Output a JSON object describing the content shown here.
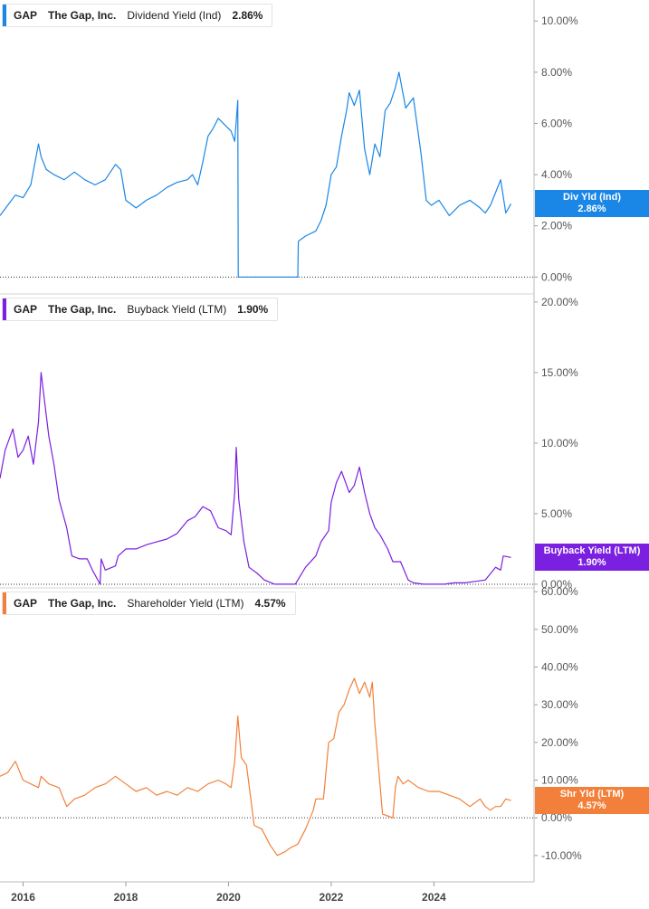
{
  "colors": {
    "dividend": "#1a86e6",
    "buyback": "#7b1fe0",
    "shareholder": "#f2803a"
  },
  "x_axis": {
    "labels": [
      "2016",
      "2018",
      "2020",
      "2022",
      "2024"
    ],
    "positions": [
      2016,
      2018,
      2020,
      2022,
      2024
    ],
    "range": [
      2015.55,
      2025.95
    ]
  },
  "panels": [
    {
      "ticker": "GAP",
      "company": "The Gap, Inc.",
      "metric": "Dividend Yield (Ind)",
      "value": "2.86%",
      "flag_label": "Div Yld (Ind)",
      "flag_value": "2.86%",
      "color_key": "dividend",
      "ylim": [
        -0.0066,
        0.1082
      ],
      "yticks": [
        0.0,
        0.02,
        0.04,
        0.06,
        0.08,
        0.1
      ],
      "ytick_labels": [
        "0.00%",
        "2.00%",
        "4.00%",
        "6.00%",
        "8.00%",
        "10.00%"
      ],
      "last_value": 0.0286
    },
    {
      "ticker": "GAP",
      "company": "The Gap, Inc.",
      "metric": "Buyback Yield (LTM)",
      "value": "1.90%",
      "flag_label": "Buyback Yield (LTM)",
      "flag_value": "1.90%",
      "color_key": "buyback",
      "ylim": [
        -0.0026,
        0.2057
      ],
      "yticks": [
        0.0,
        0.05,
        0.1,
        0.15,
        0.2
      ],
      "ytick_labels": [
        "0.00%",
        "5.00%",
        "10.00%",
        "15.00%",
        "20.00%"
      ],
      "last_value": 0.019
    },
    {
      "ticker": "GAP",
      "company": "The Gap, Inc.",
      "metric": "Shareholder Yield (LTM)",
      "value": "4.57%",
      "flag_label": "Shr Yld (LTM)",
      "flag_value": "4.57%",
      "color_key": "shareholder",
      "ylim": [
        -0.17,
        0.61
      ],
      "yticks": [
        -0.1,
        0.0,
        0.1,
        0.2,
        0.3,
        0.4,
        0.5,
        0.6
      ],
      "ytick_labels": [
        "-10.00%",
        "0.00%",
        "10.00%",
        "20.00%",
        "30.00%",
        "40.00%",
        "50.00%",
        "60.00%"
      ],
      "last_value": 0.0457
    }
  ],
  "chart_data": [
    {
      "type": "line",
      "title": "Dividend Yield (Ind)",
      "series": [
        {
          "name": "Dividend Yield (Ind)",
          "x": [
            2015.55,
            2015.7,
            2015.85,
            2016.0,
            2016.15,
            2016.3,
            2016.35,
            2016.45,
            2016.6,
            2016.8,
            2017.0,
            2017.2,
            2017.4,
            2017.6,
            2017.8,
            2017.9,
            2018.0,
            2018.2,
            2018.4,
            2018.6,
            2018.8,
            2019.0,
            2019.2,
            2019.3,
            2019.4,
            2019.5,
            2019.6,
            2019.7,
            2019.8,
            2019.95,
            2020.05,
            2020.12,
            2020.18,
            2020.19,
            2021.35,
            2021.36,
            2021.5,
            2021.7,
            2021.8,
            2021.9,
            2022.0,
            2022.1,
            2022.2,
            2022.3,
            2022.35,
            2022.45,
            2022.55,
            2022.65,
            2022.75,
            2022.85,
            2022.95,
            2023.05,
            2023.15,
            2023.25,
            2023.32,
            2023.45,
            2023.6,
            2023.75,
            2023.85,
            2023.95,
            2024.1,
            2024.3,
            2024.5,
            2024.7,
            2024.9,
            2025.0,
            2025.1,
            2025.2,
            2025.3,
            2025.4,
            2025.5
          ],
          "y": [
            0.024,
            0.028,
            0.032,
            0.031,
            0.036,
            0.052,
            0.047,
            0.042,
            0.04,
            0.038,
            0.041,
            0.038,
            0.036,
            0.038,
            0.044,
            0.042,
            0.03,
            0.027,
            0.03,
            0.032,
            0.035,
            0.037,
            0.038,
            0.04,
            0.036,
            0.045,
            0.055,
            0.058,
            0.062,
            0.059,
            0.057,
            0.053,
            0.069,
            0.0,
            0.0,
            0.014,
            0.016,
            0.018,
            0.022,
            0.028,
            0.04,
            0.043,
            0.055,
            0.065,
            0.072,
            0.067,
            0.073,
            0.05,
            0.04,
            0.052,
            0.047,
            0.065,
            0.068,
            0.074,
            0.08,
            0.066,
            0.07,
            0.048,
            0.03,
            0.028,
            0.03,
            0.024,
            0.028,
            0.03,
            0.027,
            0.025,
            0.028,
            0.033,
            0.038,
            0.025,
            0.0286
          ]
        }
      ],
      "ylim": [
        -0.0066,
        0.1082
      ]
    },
    {
      "type": "line",
      "title": "Buyback Yield (LTM)",
      "series": [
        {
          "name": "Buyback Yield (LTM)",
          "x": [
            2015.55,
            2015.65,
            2015.8,
            2015.9,
            2016.0,
            2016.1,
            2016.2,
            2016.3,
            2016.35,
            2016.5,
            2016.6,
            2016.7,
            2016.85,
            2016.95,
            2017.1,
            2017.25,
            2017.35,
            2017.5,
            2017.52,
            2017.6,
            2017.8,
            2017.85,
            2018.0,
            2018.2,
            2018.4,
            2018.6,
            2018.8,
            2019.0,
            2019.2,
            2019.35,
            2019.5,
            2019.65,
            2019.8,
            2019.95,
            2020.05,
            2020.12,
            2020.15,
            2020.2,
            2020.3,
            2020.4,
            2020.55,
            2020.7,
            2020.9,
            2021.1,
            2021.3,
            2021.5,
            2021.7,
            2021.8,
            2021.95,
            2022.0,
            2022.1,
            2022.2,
            2022.35,
            2022.45,
            2022.55,
            2022.65,
            2022.75,
            2022.85,
            2022.95,
            2023.1,
            2023.2,
            2023.35,
            2023.5,
            2023.6,
            2023.8,
            2024.0,
            2024.2,
            2024.4,
            2024.6,
            2024.8,
            2025.0,
            2025.2,
            2025.3,
            2025.35,
            2025.5
          ],
          "y": [
            0.075,
            0.095,
            0.11,
            0.09,
            0.095,
            0.105,
            0.085,
            0.115,
            0.15,
            0.105,
            0.085,
            0.06,
            0.04,
            0.02,
            0.018,
            0.018,
            0.01,
            0.0,
            0.018,
            0.01,
            0.013,
            0.02,
            0.025,
            0.025,
            0.028,
            0.03,
            0.032,
            0.036,
            0.045,
            0.048,
            0.055,
            0.052,
            0.04,
            0.038,
            0.035,
            0.065,
            0.097,
            0.06,
            0.03,
            0.012,
            0.008,
            0.003,
            0.0,
            0.0,
            0.0,
            0.012,
            0.02,
            0.03,
            0.038,
            0.058,
            0.072,
            0.08,
            0.065,
            0.07,
            0.083,
            0.065,
            0.05,
            0.04,
            0.035,
            0.025,
            0.016,
            0.016,
            0.003,
            0.001,
            0.0,
            0.0,
            0.0,
            0.001,
            0.001,
            0.002,
            0.003,
            0.012,
            0.01,
            0.02,
            0.019
          ]
        }
      ],
      "ylim": [
        -0.0026,
        0.2057
      ]
    },
    {
      "type": "line",
      "title": "Shareholder Yield (LTM)",
      "series": [
        {
          "name": "Shareholder Yield (LTM)",
          "x": [
            2015.55,
            2015.7,
            2015.85,
            2016.0,
            2016.15,
            2016.3,
            2016.35,
            2016.5,
            2016.7,
            2016.85,
            2017.0,
            2017.2,
            2017.4,
            2017.6,
            2017.8,
            2018.0,
            2018.2,
            2018.4,
            2018.6,
            2018.8,
            2019.0,
            2019.2,
            2019.4,
            2019.6,
            2019.8,
            2019.95,
            2020.05,
            2020.12,
            2020.18,
            2020.25,
            2020.35,
            2020.5,
            2020.65,
            2020.8,
            2020.95,
            2021.1,
            2021.2,
            2021.35,
            2021.5,
            2021.65,
            2021.7,
            2021.85,
            2021.95,
            2022.05,
            2022.15,
            2022.25,
            2022.35,
            2022.45,
            2022.55,
            2022.65,
            2022.75,
            2022.8,
            2022.85,
            2023.0,
            2023.2,
            2023.25,
            2023.3,
            2023.4,
            2023.5,
            2023.7,
            2023.9,
            2024.1,
            2024.3,
            2024.5,
            2024.7,
            2024.9,
            2025.0,
            2025.1,
            2025.2,
            2025.3,
            2025.4,
            2025.5
          ],
          "y": [
            0.11,
            0.12,
            0.15,
            0.1,
            0.09,
            0.08,
            0.11,
            0.09,
            0.08,
            0.03,
            0.05,
            0.06,
            0.08,
            0.09,
            0.11,
            0.09,
            0.07,
            0.08,
            0.06,
            0.07,
            0.06,
            0.08,
            0.07,
            0.09,
            0.1,
            0.09,
            0.08,
            0.15,
            0.27,
            0.16,
            0.14,
            -0.02,
            -0.03,
            -0.07,
            -0.1,
            -0.09,
            -0.08,
            -0.07,
            -0.03,
            0.02,
            0.05,
            0.05,
            0.2,
            0.21,
            0.28,
            0.3,
            0.34,
            0.37,
            0.33,
            0.36,
            0.32,
            0.36,
            0.25,
            0.01,
            0.0,
            0.08,
            0.11,
            0.09,
            0.1,
            0.08,
            0.07,
            0.07,
            0.06,
            0.05,
            0.03,
            0.05,
            0.03,
            0.02,
            0.03,
            0.03,
            0.05,
            0.0457
          ]
        }
      ],
      "ylim": [
        -0.17,
        0.61
      ]
    }
  ]
}
